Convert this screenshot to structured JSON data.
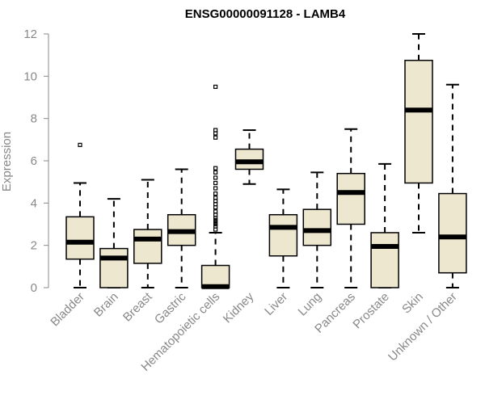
{
  "chart_data": {
    "type": "boxplot",
    "title": "ENSG00000091128 - LAMB4",
    "xlabel": "",
    "ylabel": "Expression",
    "ylim": [
      0,
      12
    ],
    "yticks": [
      "0",
      "2",
      "4",
      "6",
      "8",
      "10",
      "12"
    ],
    "grid": false,
    "legend": "none",
    "colors": {
      "box_fill": "#ede7cf",
      "median": "#000000",
      "axis_text": "#888888"
    },
    "boxes": [
      {
        "category": "Bladder",
        "whisker_low": 0,
        "q1": 1.35,
        "median": 2.15,
        "q3": 3.35,
        "whisker_high": 4.95,
        "outliers": [
          6.75
        ]
      },
      {
        "category": "Brain",
        "whisker_low": 0,
        "q1": 0,
        "median": 1.4,
        "q3": 1.85,
        "whisker_high": 4.2,
        "outliers": []
      },
      {
        "category": "Breast",
        "whisker_low": 0,
        "q1": 1.15,
        "median": 2.3,
        "q3": 2.75,
        "whisker_high": 5.1,
        "outliers": []
      },
      {
        "category": "Gastric",
        "whisker_low": 0,
        "q1": 2.0,
        "median": 2.65,
        "q3": 3.45,
        "whisker_high": 5.6,
        "outliers": []
      },
      {
        "category": "Hematopoietic cells",
        "whisker_low": 0,
        "q1": 0,
        "median": 0.05,
        "q3": 1.05,
        "whisker_high": 2.6,
        "outliers": [
          2.75,
          2.9,
          3.0,
          3.1,
          3.2,
          3.3,
          3.45,
          3.6,
          3.8,
          3.95,
          4.1,
          4.25,
          4.45,
          4.7,
          4.95,
          5.2,
          5.45,
          5.65,
          7.1,
          7.3,
          7.45,
          9.5
        ]
      },
      {
        "category": "Kidney",
        "whisker_low": 4.9,
        "q1": 5.6,
        "median": 5.95,
        "q3": 6.55,
        "whisker_high": 7.45,
        "outliers": []
      },
      {
        "category": "Liver",
        "whisker_low": 0,
        "q1": 1.5,
        "median": 2.85,
        "q3": 3.45,
        "whisker_high": 4.65,
        "outliers": []
      },
      {
        "category": "Lung",
        "whisker_low": 0,
        "q1": 2.0,
        "median": 2.7,
        "q3": 3.7,
        "whisker_high": 5.45,
        "outliers": []
      },
      {
        "category": "Pancreas",
        "whisker_low": 0,
        "q1": 3.0,
        "median": 4.5,
        "q3": 5.4,
        "whisker_high": 7.5,
        "outliers": []
      },
      {
        "category": "Prostate",
        "whisker_low": 0,
        "q1": 0,
        "median": 1.95,
        "q3": 2.6,
        "whisker_high": 5.85,
        "outliers": []
      },
      {
        "category": "Skin",
        "whisker_low": 2.6,
        "q1": 4.95,
        "median": 8.4,
        "q3": 10.75,
        "whisker_high": 12.0,
        "outliers": []
      },
      {
        "category": "Unknown / Other",
        "whisker_low": 0,
        "q1": 0.7,
        "median": 2.4,
        "q3": 4.45,
        "whisker_high": 9.6,
        "outliers": []
      }
    ]
  }
}
